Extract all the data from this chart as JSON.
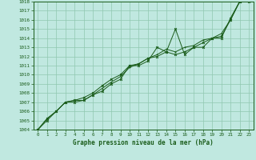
{
  "title": "Graphe pression niveau de la mer (hPa)",
  "xlim": [
    -0.5,
    23.5
  ],
  "ylim": [
    1004,
    1018
  ],
  "yticks": [
    1004,
    1005,
    1006,
    1007,
    1008,
    1009,
    1010,
    1011,
    1012,
    1013,
    1014,
    1015,
    1016,
    1017,
    1018
  ],
  "bg_color": "#c0e8e0",
  "grid_color": "#90c8b0",
  "line_color": "#1a5c1a",
  "series1": [
    1004.0,
    1005.0,
    1006.0,
    1007.0,
    1007.0,
    1007.2,
    1007.8,
    1008.2,
    1009.0,
    1009.5,
    1011.0,
    1011.0,
    1011.5,
    1013.0,
    1012.5,
    1015.0,
    1012.2,
    1013.0,
    1013.0,
    1014.0,
    1014.0,
    1016.2,
    1018.0,
    1018.0
  ],
  "series2": [
    1004.0,
    1005.2,
    1006.0,
    1007.0,
    1007.2,
    1007.5,
    1008.0,
    1008.8,
    1009.5,
    1010.0,
    1011.0,
    1011.2,
    1011.8,
    1012.0,
    1012.5,
    1012.2,
    1012.5,
    1013.0,
    1013.5,
    1014.0,
    1014.2,
    1016.0,
    1018.0,
    1018.2
  ],
  "series3": [
    1004.0,
    1005.2,
    1006.0,
    1007.0,
    1007.2,
    1007.2,
    1007.8,
    1008.5,
    1009.2,
    1009.8,
    1010.8,
    1011.2,
    1011.8,
    1012.2,
    1012.8,
    1012.5,
    1013.0,
    1013.2,
    1013.8,
    1014.0,
    1014.5,
    1016.0,
    1018.0,
    1018.2
  ]
}
